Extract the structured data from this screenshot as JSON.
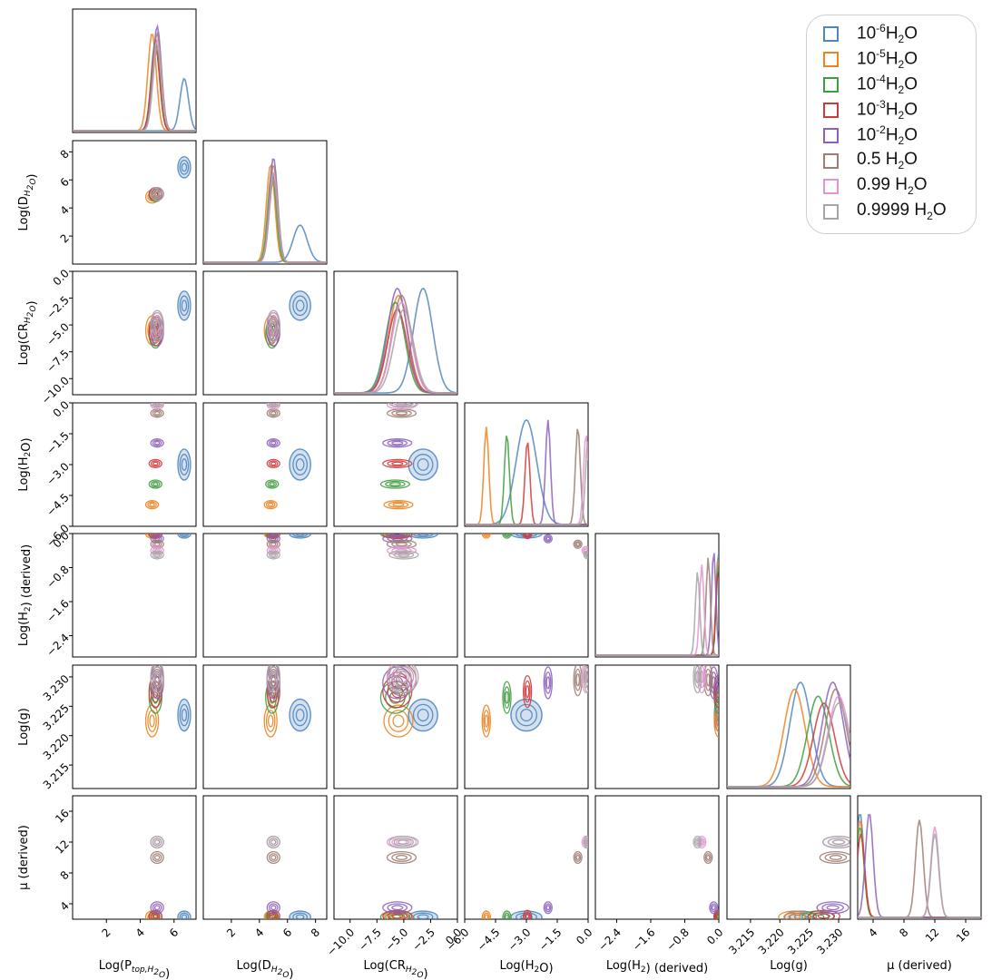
{
  "chart_data": {
    "type": "corner",
    "parameters": [
      {
        "key": "p",
        "axis_label": "Log(P_top,H2O)",
        "range": [
          0,
          7.3
        ],
        "ticks": [
          "2",
          "4",
          "6"
        ],
        "tick_values": [
          2,
          4,
          6
        ]
      },
      {
        "key": "d",
        "axis_label": "Log(D_H2O)",
        "range": [
          0,
          8.8
        ],
        "ticks": [
          "2",
          "4",
          "6",
          "8"
        ],
        "tick_values": [
          2,
          4,
          6,
          8
        ]
      },
      {
        "key": "cr",
        "axis_label": "Log(CR_H2O)",
        "range": [
          -11.5,
          0
        ],
        "ticks": [
          "−10.0",
          "−7.5",
          "−5.0",
          "−2.5",
          "0.0"
        ],
        "tick_values": [
          -10,
          -7.5,
          -5,
          -2.5,
          0
        ]
      },
      {
        "key": "h2o",
        "axis_label": "Log(H2O)",
        "range": [
          -6,
          0
        ],
        "ticks": [
          "−6.0",
          "−4.5",
          "−3.0",
          "−1.5",
          "0.0"
        ],
        "tick_values": [
          -6,
          -4.5,
          -3,
          -1.5,
          0
        ]
      },
      {
        "key": "h2",
        "axis_label": "Log(H2) (derived)",
        "range": [
          -2.9,
          0
        ],
        "ticks": [
          "−2.4",
          "−1.6",
          "−0.8",
          "0.0"
        ],
        "tick_values": [
          -2.4,
          -1.6,
          -0.8,
          0
        ]
      },
      {
        "key": "g",
        "axis_label": "Log(g)",
        "range": [
          3.211,
          3.232
        ],
        "ticks": [
          "3.215",
          "3.220",
          "3.225",
          "3.230"
        ],
        "tick_values": [
          3.215,
          3.22,
          3.225,
          3.23
        ]
      },
      {
        "key": "mu",
        "axis_label": "μ (derived)",
        "range": [
          2,
          18
        ],
        "ticks": [
          "4",
          "8",
          "12",
          "16"
        ],
        "tick_values": [
          4,
          8,
          12,
          16
        ]
      }
    ],
    "y_axis_labels": {
      "d": "Log(D_H2O)",
      "cr": "Log(CR_H2O)",
      "h2o": "Log(H2O)",
      "h2": "Log(H2) (derived)",
      "g": "Log(g)",
      "mu": "μ (derived)"
    },
    "series": [
      {
        "name": "10^-6 H2O",
        "color": "#4f86c0",
        "p": 6.6,
        "d": 6.9,
        "cr": -3.2,
        "h2o": -3.0,
        "h2": -0.01,
        "g": 3.2235,
        "mu": 2.3
      },
      {
        "name": "10^-5 H2O",
        "color": "#f0831f",
        "p": 4.7,
        "d": 4.8,
        "cr": -5.5,
        "h2o": -4.95,
        "h2": -0.01,
        "g": 3.2225,
        "mu": 2.3
      },
      {
        "name": "10^-4 H2O",
        "color": "#3e9d3e",
        "p": 4.9,
        "d": 4.9,
        "cr": -5.8,
        "h2o": -3.95,
        "h2": -0.01,
        "g": 3.2265,
        "mu": 2.3
      },
      {
        "name": "10^-3 H2O",
        "color": "#d0393a",
        "p": 4.9,
        "d": 5.0,
        "cr": -5.6,
        "h2o": -2.95,
        "h2": -0.02,
        "g": 3.2275,
        "mu": 2.4
      },
      {
        "name": "10^-2 H2O",
        "color": "#8d60bd",
        "p": 5.0,
        "d": 5.0,
        "cr": -5.6,
        "h2o": -1.95,
        "h2": -0.12,
        "g": 3.229,
        "mu": 3.5
      },
      {
        "name": "0.5 H2O",
        "color": "#9e7d73",
        "p": 5.0,
        "d": 5.0,
        "cr": -5.2,
        "h2o": -0.5,
        "h2": -0.25,
        "g": 3.2295,
        "mu": 10.0
      },
      {
        "name": "0.99 H2O",
        "color": "#e393cf",
        "p": 5.0,
        "d": 5.0,
        "cr": -5.2,
        "h2o": -0.1,
        "h2": -0.4,
        "g": 3.23,
        "mu": 12.0
      },
      {
        "name": "0.9999 H2O",
        "color": "#a5a5a5",
        "p": 5.0,
        "d": 5.0,
        "cr": -5.0,
        "h2o": -0.01,
        "h2": -0.5,
        "g": 3.23,
        "mu": 12.0
      }
    ]
  },
  "legend": {
    "items": [
      {
        "base": "10",
        "exp": "-6",
        "suffix": "H2O",
        "label": "10^-6 H2O",
        "color": "#4f86c0"
      },
      {
        "base": "10",
        "exp": "-5",
        "suffix": "H2O",
        "label": "10^-5 H2O",
        "color": "#f0831f"
      },
      {
        "base": "10",
        "exp": "-4",
        "suffix": "H2O",
        "label": "10^-4 H2O",
        "color": "#3e9d3e"
      },
      {
        "base": "10",
        "exp": "-3",
        "suffix": "H2O",
        "label": "10^-3 H2O",
        "color": "#d0393a"
      },
      {
        "base": "10",
        "exp": "-2",
        "suffix": "H2O",
        "label": "10^-2 H2O",
        "color": "#8d60bd"
      },
      {
        "base": "0.5",
        "exp": "",
        "suffix": "H2O",
        "label": "0.5  H2O",
        "color": "#9e7d73"
      },
      {
        "base": "0.99",
        "exp": "",
        "suffix": "H2O",
        "label": "0.99  H2O",
        "color": "#e393cf"
      },
      {
        "base": "0.9999",
        "exp": "",
        "suffix": "H2O",
        "label": "0.9999  H2O",
        "color": "#a5a5a5"
      }
    ]
  }
}
